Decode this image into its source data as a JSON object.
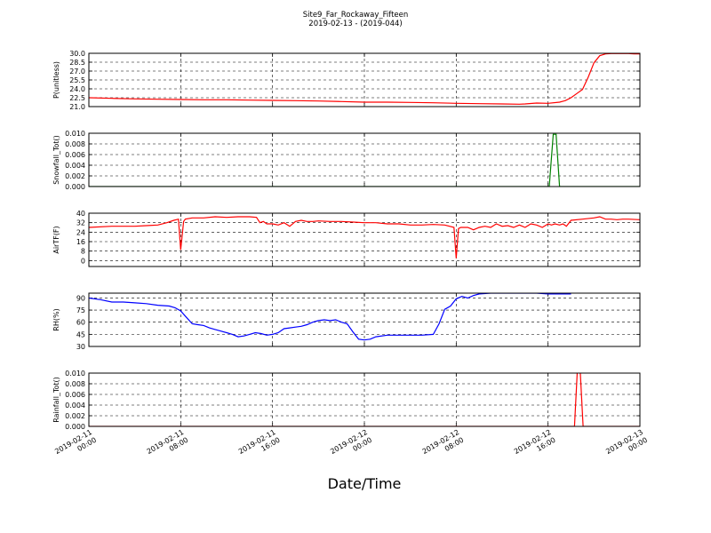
{
  "title": "Site9_Far_Rockaway_Fifteen",
  "subtitle": "2019-02-13 - (2019-044)",
  "xlabel": "Date/Time",
  "x_ticks": [
    {
      "t": 0,
      "line1": "2019-02-11",
      "line2": "00:00"
    },
    {
      "t": 8,
      "line1": "2019-02-11",
      "line2": "08:00"
    },
    {
      "t": 16,
      "line1": "2019-02-11",
      "line2": "16:00"
    },
    {
      "t": 24,
      "line1": "2019-02-12",
      "line2": "00:00"
    },
    {
      "t": 32,
      "line1": "2019-02-12",
      "line2": "08:00"
    },
    {
      "t": 40,
      "line1": "2019-02-12",
      "line2": "16:00"
    },
    {
      "t": 48,
      "line1": "2019-02-13",
      "line2": "00:00"
    }
  ],
  "colors": {
    "red": "#ff0000",
    "green": "#008000",
    "blue": "#0000ff"
  },
  "chart_data": [
    {
      "type": "line",
      "ylabel": "P(unitless)",
      "ylim": [
        21.0,
        30.0
      ],
      "yticks": [
        "21.0",
        "22.5",
        "24.0",
        "25.5",
        "27.0",
        "28.5",
        "30.0"
      ],
      "grid": true,
      "color": "red",
      "x": [
        0,
        2,
        4,
        6,
        8,
        10,
        12,
        14,
        16,
        18,
        20,
        22,
        24,
        26,
        28,
        30,
        32,
        34,
        36,
        37.5,
        38,
        39,
        40,
        41,
        41.5,
        42,
        42.5,
        43,
        43.5,
        44,
        44.5,
        45,
        45.5,
        46,
        46.5,
        47,
        47.5,
        48
      ],
      "y": [
        22.5,
        22.4,
        22.3,
        22.25,
        22.2,
        22.15,
        22.15,
        22.1,
        22.05,
        22.0,
        21.95,
        21.85,
        21.75,
        21.75,
        21.7,
        21.65,
        21.55,
        21.5,
        21.45,
        21.4,
        21.45,
        21.6,
        21.55,
        21.75,
        22.0,
        22.5,
        23.2,
        23.9,
        26.0,
        28.4,
        29.6,
        29.9,
        29.95,
        29.95,
        29.95,
        29.95,
        29.9,
        29.9
      ]
    },
    {
      "type": "line",
      "ylabel": "Snowfall_Tot()",
      "ylim": [
        0.0,
        0.01
      ],
      "yticks": [
        "0.000",
        "0.002",
        "0.004",
        "0.006",
        "0.008",
        "0.010"
      ],
      "grid": true,
      "color": "green",
      "x": [
        0,
        40.1,
        40.45,
        40.7,
        41.0,
        48
      ],
      "y": [
        0,
        0,
        0.0098,
        0.0098,
        0,
        0
      ]
    },
    {
      "type": "line",
      "ylabel": "AirTF(F)",
      "ylim": [
        -5,
        40
      ],
      "yticks": [
        "0",
        "8",
        "16",
        "24",
        "32",
        "40"
      ],
      "grid": true,
      "color": "red",
      "x": [
        0,
        2,
        4,
        5,
        6,
        6.8,
        7.4,
        7.8,
        8.0,
        8.25,
        8.4,
        9,
        10,
        11,
        12,
        13,
        14,
        14.6,
        14.9,
        15.2,
        15.5,
        16,
        16.5,
        17,
        17.5,
        18,
        18.5,
        19,
        19.5,
        20,
        21,
        22,
        23,
        24,
        25,
        26,
        27,
        28,
        29,
        30,
        31,
        31.8,
        32.0,
        32.2,
        32.4,
        33,
        33.5,
        34,
        34.5,
        35,
        35.5,
        36,
        36.5,
        37,
        37.5,
        38,
        38.5,
        39,
        39.5,
        40,
        40.3,
        40.6,
        41,
        41.3,
        41.6,
        42,
        43,
        44,
        44.5,
        45,
        45.5,
        46,
        46.5,
        47,
        48
      ],
      "y": [
        28,
        29,
        29,
        29.5,
        30,
        32,
        34,
        35,
        9,
        33,
        35,
        36,
        36,
        37,
        36.5,
        37,
        37,
        36.5,
        32,
        33,
        31,
        31,
        30,
        32,
        29,
        33,
        34,
        33,
        33,
        33.5,
        33,
        33,
        32.5,
        32,
        32,
        31,
        31,
        30,
        30,
        30.5,
        30,
        28,
        2,
        27,
        28,
        28,
        26,
        28,
        29,
        28,
        31,
        29,
        29.5,
        28,
        30,
        28,
        31,
        30,
        28,
        31,
        30,
        31,
        30,
        31,
        29,
        34,
        35,
        36,
        37,
        35,
        35,
        34.5,
        35,
        35,
        34.5
      ]
    },
    {
      "type": "line",
      "ylabel": "RH(%)",
      "ylim": [
        30,
        96
      ],
      "yticks": [
        "30",
        "45",
        "60",
        "75",
        "90"
      ],
      "grid": true,
      "color": "blue",
      "x": [
        0,
        1,
        2,
        3,
        4,
        5,
        6,
        7,
        7.5,
        8,
        8.5,
        9,
        9.5,
        10,
        10.5,
        11,
        11.5,
        12,
        12.5,
        13,
        13.5,
        14,
        14.5,
        15,
        15.5,
        16,
        16.5,
        17,
        17.5,
        18,
        18.5,
        19,
        19.5,
        20,
        20.5,
        21,
        21.5,
        22,
        22.5,
        23,
        23.5,
        24,
        24.5,
        25,
        26,
        27,
        28,
        29,
        30,
        30.5,
        31,
        31.5,
        32,
        32.5,
        33,
        33.5,
        34,
        35,
        36,
        37,
        38,
        39,
        40,
        41,
        42
      ],
      "y": [
        90,
        88,
        85,
        85,
        84,
        83,
        81,
        80,
        78,
        74,
        66,
        58,
        57,
        56,
        53,
        51,
        49,
        47,
        45,
        42,
        43,
        45,
        47,
        46,
        44,
        45,
        47,
        52,
        53,
        54,
        55,
        57,
        60,
        62,
        63,
        62,
        63,
        60,
        58,
        48,
        39,
        38,
        39,
        42,
        44,
        44,
        44,
        44,
        45,
        58,
        76,
        80,
        89,
        92,
        90,
        93,
        95,
        96,
        96,
        96,
        96,
        96,
        95,
        95,
        95
      ]
    },
    {
      "type": "line",
      "ylabel": "Rainfall_Tot()",
      "ylim": [
        0.0,
        0.01
      ],
      "yticks": [
        "0.000",
        "0.002",
        "0.004",
        "0.006",
        "0.008",
        "0.010"
      ],
      "grid": true,
      "color": "red",
      "x": [
        0,
        42.3,
        42.55,
        42.8,
        43.05,
        48
      ],
      "y": [
        0,
        0,
        0.0105,
        0.0105,
        0,
        0
      ]
    }
  ]
}
